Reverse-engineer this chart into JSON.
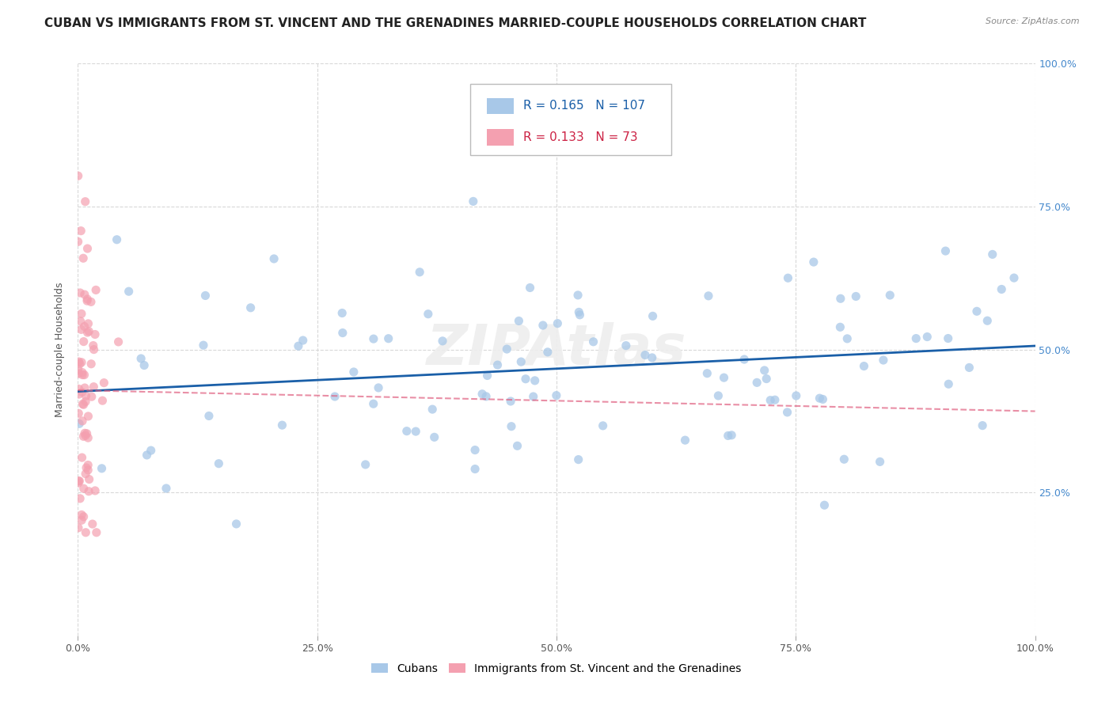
{
  "title": "CUBAN VS IMMIGRANTS FROM ST. VINCENT AND THE GRENADINES MARRIED-COUPLE HOUSEHOLDS CORRELATION CHART",
  "source": "Source: ZipAtlas.com",
  "ylabel": "Married-couple Households",
  "xmin": 0.0,
  "xmax": 1.0,
  "ymin": 0.0,
  "ymax": 1.0,
  "xtick_vals": [
    0.0,
    0.25,
    0.5,
    0.75,
    1.0
  ],
  "xtick_labels": [
    "0.0%",
    "25.0%",
    "50.0%",
    "75.0%",
    "100.0%"
  ],
  "ytick_vals": [
    0.25,
    0.5,
    0.75,
    1.0
  ],
  "ytick_labels": [
    "25.0%",
    "50.0%",
    "75.0%",
    "100.0%"
  ],
  "cubans_R": 0.165,
  "cubans_N": 107,
  "svg_R": 0.133,
  "svg_N": 73,
  "cubans_color": "#a8c8e8",
  "svg_color": "#f4a0b0",
  "cubans_line_color": "#1a5fa8",
  "svg_line_color": "#e06080",
  "background_color": "#ffffff",
  "grid_color": "#d8d8d8",
  "watermark_color": "#eeeeee",
  "title_fontsize": 11,
  "axis_label_fontsize": 9,
  "tick_fontsize": 9,
  "legend_fontsize": 11,
  "source_fontsize": 8
}
